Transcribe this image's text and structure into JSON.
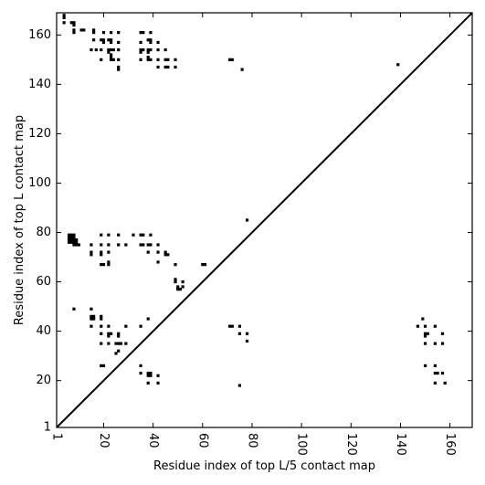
{
  "chart_data": {
    "type": "scatter",
    "title": "",
    "xlabel": "Residue index of top L/5 contact map",
    "ylabel": "Residue index of top L contact map",
    "xlim": [
      1,
      169
    ],
    "ylim": [
      1,
      169
    ],
    "x_ticks": [
      1,
      20,
      40,
      60,
      80,
      100,
      120,
      140,
      160
    ],
    "y_ticks": [
      1,
      20,
      40,
      60,
      80,
      100,
      120,
      140,
      160
    ],
    "grid": false,
    "diagonal": {
      "from": [
        1,
        1
      ],
      "to": [
        169,
        169
      ],
      "color": "#000000"
    },
    "marker_color": "#000000",
    "points": [
      [
        4,
        168
      ],
      [
        4,
        167
      ],
      [
        4,
        165
      ],
      [
        7,
        165
      ],
      [
        8,
        165
      ],
      [
        8,
        164
      ],
      [
        8,
        162
      ],
      [
        8,
        161
      ],
      [
        11,
        162
      ],
      [
        12,
        162
      ],
      [
        16,
        162
      ],
      [
        16,
        161
      ],
      [
        20,
        161
      ],
      [
        23,
        161
      ],
      [
        26,
        161
      ],
      [
        35,
        161
      ],
      [
        36,
        161
      ],
      [
        39,
        161
      ],
      [
        16,
        158
      ],
      [
        19,
        158
      ],
      [
        20,
        158
      ],
      [
        20,
        157
      ],
      [
        22,
        158
      ],
      [
        23,
        158
      ],
      [
        23,
        157
      ],
      [
        26,
        157
      ],
      [
        35,
        157
      ],
      [
        38,
        158
      ],
      [
        39,
        158
      ],
      [
        39,
        157
      ],
      [
        42,
        157
      ],
      [
        15,
        154
      ],
      [
        17,
        154
      ],
      [
        19,
        154
      ],
      [
        22,
        154
      ],
      [
        23,
        154
      ],
      [
        24,
        154
      ],
      [
        22,
        153
      ],
      [
        23,
        152
      ],
      [
        26,
        154
      ],
      [
        35,
        154
      ],
      [
        36,
        154
      ],
      [
        35,
        153
      ],
      [
        38,
        154
      ],
      [
        39,
        154
      ],
      [
        38,
        153
      ],
      [
        42,
        154
      ],
      [
        45,
        154
      ],
      [
        19,
        150
      ],
      [
        23,
        151
      ],
      [
        23,
        150
      ],
      [
        24,
        150
      ],
      [
        26,
        150
      ],
      [
        35,
        150
      ],
      [
        38,
        151
      ],
      [
        38,
        150
      ],
      [
        39,
        150
      ],
      [
        42,
        150
      ],
      [
        45,
        150
      ],
      [
        46,
        150
      ],
      [
        49,
        150
      ],
      [
        26,
        147
      ],
      [
        26,
        146
      ],
      [
        42,
        147
      ],
      [
        45,
        147
      ],
      [
        46,
        147
      ],
      [
        49,
        147
      ],
      [
        71,
        150
      ],
      [
        72,
        150
      ],
      [
        76,
        146
      ],
      [
        139,
        148
      ],
      [
        78,
        85
      ],
      [
        6,
        79
      ],
      [
        7,
        79
      ],
      [
        8,
        79
      ],
      [
        6,
        78
      ],
      [
        7,
        78
      ],
      [
        8,
        78
      ],
      [
        6,
        77
      ],
      [
        7,
        77
      ],
      [
        8,
        77
      ],
      [
        9,
        77
      ],
      [
        6,
        76
      ],
      [
        7,
        76
      ],
      [
        8,
        76
      ],
      [
        9,
        76
      ],
      [
        8,
        75
      ],
      [
        9,
        75
      ],
      [
        10,
        75
      ],
      [
        19,
        79
      ],
      [
        22,
        79
      ],
      [
        26,
        79
      ],
      [
        32,
        79
      ],
      [
        35,
        79
      ],
      [
        36,
        79
      ],
      [
        39,
        79
      ],
      [
        15,
        75
      ],
      [
        19,
        75
      ],
      [
        22,
        75
      ],
      [
        26,
        75
      ],
      [
        29,
        75
      ],
      [
        35,
        75
      ],
      [
        36,
        75
      ],
      [
        38,
        75
      ],
      [
        39,
        75
      ],
      [
        42,
        75
      ],
      [
        15,
        72
      ],
      [
        15,
        71
      ],
      [
        19,
        72
      ],
      [
        19,
        71
      ],
      [
        22,
        72
      ],
      [
        38,
        72
      ],
      [
        42,
        72
      ],
      [
        45,
        72
      ],
      [
        45,
        71
      ],
      [
        46,
        71
      ],
      [
        42,
        68
      ],
      [
        19,
        67
      ],
      [
        20,
        67
      ],
      [
        22,
        67
      ],
      [
        22,
        68
      ],
      [
        49,
        67
      ],
      [
        60,
        67
      ],
      [
        61,
        67
      ],
      [
        49,
        61
      ],
      [
        49,
        60
      ],
      [
        52,
        60
      ],
      [
        50,
        58
      ],
      [
        50,
        57
      ],
      [
        51,
        57
      ],
      [
        52,
        58
      ],
      [
        8,
        49
      ],
      [
        15,
        49
      ],
      [
        15,
        46
      ],
      [
        15,
        45
      ],
      [
        16,
        46
      ],
      [
        16,
        45
      ],
      [
        19,
        46
      ],
      [
        19,
        45
      ],
      [
        15,
        42
      ],
      [
        19,
        42
      ],
      [
        22,
        42
      ],
      [
        29,
        42
      ],
      [
        35,
        42
      ],
      [
        38,
        45
      ],
      [
        19,
        39
      ],
      [
        22,
        39
      ],
      [
        23,
        39
      ],
      [
        22,
        38
      ],
      [
        26,
        39
      ],
      [
        26,
        38
      ],
      [
        29,
        35
      ],
      [
        19,
        35
      ],
      [
        22,
        35
      ],
      [
        25,
        35
      ],
      [
        26,
        35
      ],
      [
        27,
        35
      ],
      [
        26,
        32
      ],
      [
        25,
        31
      ],
      [
        19,
        26
      ],
      [
        20,
        26
      ],
      [
        35,
        26
      ],
      [
        35,
        23
      ],
      [
        38,
        23
      ],
      [
        38,
        22
      ],
      [
        39,
        22
      ],
      [
        39,
        23
      ],
      [
        42,
        22
      ],
      [
        38,
        19
      ],
      [
        42,
        19
      ],
      [
        71,
        42
      ],
      [
        72,
        42
      ],
      [
        75,
        42
      ],
      [
        75,
        39
      ],
      [
        78,
        39
      ],
      [
        78,
        36
      ],
      [
        75,
        18
      ],
      [
        147,
        42
      ],
      [
        149,
        45
      ],
      [
        150,
        42
      ],
      [
        150,
        39
      ],
      [
        150,
        38
      ],
      [
        151,
        39
      ],
      [
        154,
        42
      ],
      [
        157,
        39
      ],
      [
        150,
        35
      ],
      [
        154,
        35
      ],
      [
        157,
        35
      ],
      [
        150,
        26
      ],
      [
        154,
        26
      ],
      [
        154,
        23
      ],
      [
        155,
        23
      ],
      [
        157,
        23
      ],
      [
        154,
        19
      ],
      [
        158,
        19
      ]
    ]
  }
}
